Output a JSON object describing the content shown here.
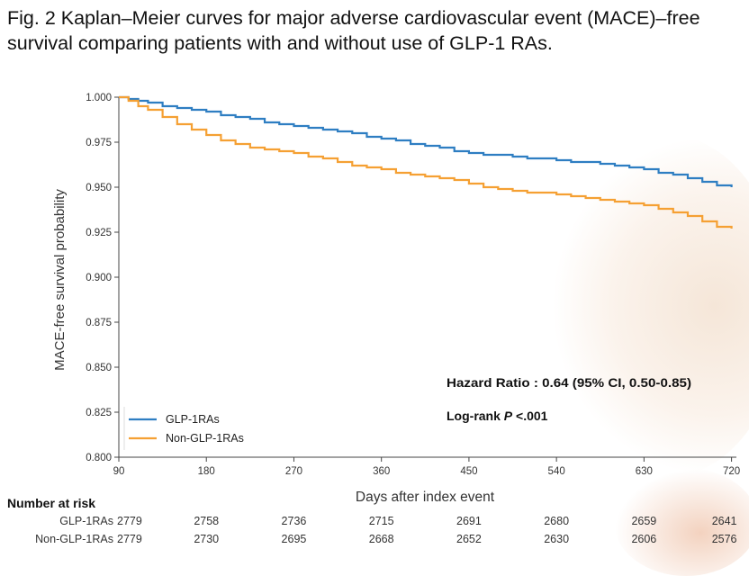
{
  "figure_title": "Fig. 2 Kaplan–Meier curves for major adverse cardiovascular event (MACE)–free survival comparing patients with and without use of GLP-1 RAs.",
  "chart_data": {
    "type": "line",
    "title": "Kaplan–Meier curves for MACE-free survival",
    "xlabel": "Days after index event",
    "ylabel": "MACE-free survival probability",
    "xlim": [
      90,
      725
    ],
    "ylim": [
      0.8,
      1.0
    ],
    "x_ticks": [
      90,
      180,
      270,
      360,
      450,
      540,
      630,
      720
    ],
    "y_ticks": [
      0.8,
      0.825,
      0.85,
      0.875,
      0.9,
      0.925,
      0.95,
      0.975,
      1.0
    ],
    "y_tick_labels": [
      "0.800",
      "0.825",
      "0.850",
      "0.875",
      "0.900",
      "0.925",
      "0.950",
      "0.975",
      "1.000"
    ],
    "legend_position": "bottom-left",
    "series": [
      {
        "name": "GLP-1RAs",
        "color": "#2e7ec2",
        "x": [
          90,
          100,
          110,
          120,
          135,
          150,
          165,
          180,
          195,
          210,
          225,
          240,
          255,
          270,
          285,
          300,
          315,
          330,
          345,
          360,
          375,
          390,
          405,
          420,
          435,
          450,
          465,
          480,
          495,
          510,
          525,
          540,
          555,
          570,
          585,
          600,
          615,
          630,
          645,
          660,
          675,
          690,
          705,
          720
        ],
        "values": [
          1.0,
          0.999,
          0.998,
          0.997,
          0.995,
          0.994,
          0.993,
          0.992,
          0.99,
          0.989,
          0.988,
          0.986,
          0.985,
          0.984,
          0.983,
          0.982,
          0.981,
          0.98,
          0.978,
          0.977,
          0.976,
          0.974,
          0.973,
          0.972,
          0.97,
          0.969,
          0.968,
          0.968,
          0.967,
          0.966,
          0.966,
          0.965,
          0.964,
          0.964,
          0.963,
          0.962,
          0.961,
          0.96,
          0.958,
          0.957,
          0.955,
          0.953,
          0.951,
          0.95
        ]
      },
      {
        "name": "Non-GLP-1RAs",
        "color": "#f5a033",
        "x": [
          90,
          100,
          110,
          120,
          135,
          150,
          165,
          180,
          195,
          210,
          225,
          240,
          255,
          270,
          285,
          300,
          315,
          330,
          345,
          360,
          375,
          390,
          405,
          420,
          435,
          450,
          465,
          480,
          495,
          510,
          525,
          540,
          555,
          570,
          585,
          600,
          615,
          630,
          645,
          660,
          675,
          690,
          705,
          720
        ],
        "values": [
          1.0,
          0.998,
          0.995,
          0.993,
          0.989,
          0.985,
          0.982,
          0.979,
          0.976,
          0.974,
          0.972,
          0.971,
          0.97,
          0.969,
          0.967,
          0.966,
          0.964,
          0.962,
          0.961,
          0.96,
          0.958,
          0.957,
          0.956,
          0.955,
          0.954,
          0.952,
          0.95,
          0.949,
          0.948,
          0.947,
          0.947,
          0.946,
          0.945,
          0.944,
          0.943,
          0.942,
          0.941,
          0.94,
          0.938,
          0.936,
          0.934,
          0.931,
          0.928,
          0.927
        ]
      }
    ],
    "annotations": {
      "hazard_ratio": "Hazard Ratio : 0.64 (95% CI, 0.50-0.85)",
      "logrank_prefix": "Log-rank ",
      "logrank_p": "P",
      "logrank_value": " <.001"
    }
  },
  "risk_table": {
    "title": "Number at risk",
    "columns": [
      "90",
      "180",
      "270",
      "360",
      "450",
      "540",
      "630",
      "720"
    ],
    "rows": [
      {
        "label": "GLP-1RAs",
        "values": [
          "2779",
          "2758",
          "2736",
          "2715",
          "2691",
          "2680",
          "2659",
          "2641"
        ]
      },
      {
        "label": "Non-GLP-1RAs",
        "values": [
          "2779",
          "2730",
          "2695",
          "2668",
          "2652",
          "2630",
          "2606",
          "2576"
        ]
      }
    ]
  }
}
